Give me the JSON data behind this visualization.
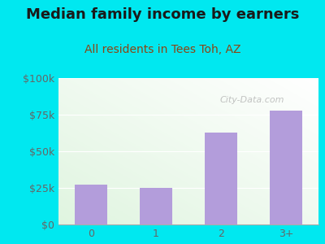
{
  "title": "Median family income by earners",
  "subtitle": "All residents in Tees Toh, AZ",
  "categories": [
    "0",
    "1",
    "2",
    "3+"
  ],
  "values": [
    27000,
    25000,
    63000,
    78000
  ],
  "bar_color": "#b39ddb",
  "title_color": "#1a1a1a",
  "subtitle_color": "#8B4513",
  "outer_bg": "#00e8f0",
  "yticks": [
    0,
    25000,
    50000,
    75000,
    100000
  ],
  "ytick_labels": [
    "$0",
    "$25k",
    "$50k",
    "$75k",
    "$100k"
  ],
  "ylim": [
    0,
    100000
  ],
  "watermark": "City-Data.com",
  "title_fontsize": 13,
  "subtitle_fontsize": 10,
  "tick_fontsize": 9,
  "tick_color": "#666666"
}
